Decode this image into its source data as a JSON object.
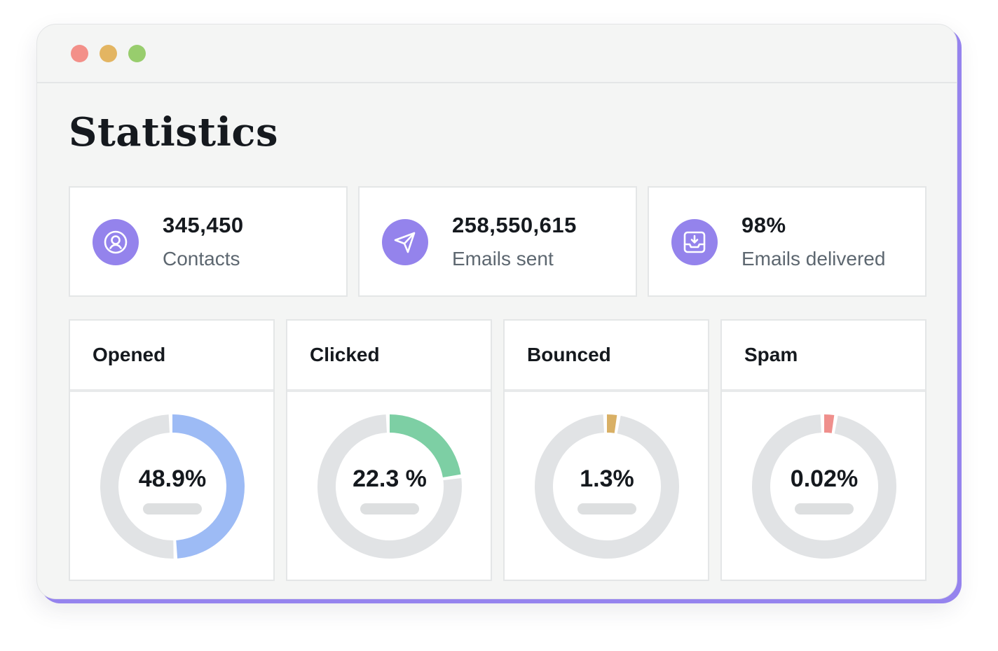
{
  "page": {
    "title": "Statistics"
  },
  "window": {
    "controls": [
      "close",
      "minimize",
      "maximize"
    ],
    "colors": {
      "close": "#f39089",
      "minimize": "#e3b562",
      "maximize": "#98cd6d",
      "accent": "#9483ec"
    }
  },
  "stats": [
    {
      "icon": "user-circle-icon",
      "value": "345,450",
      "label": "Contacts"
    },
    {
      "icon": "paper-plane-icon",
      "value": "258,550,615",
      "label": "Emails sent"
    },
    {
      "icon": "inbox-download-icon",
      "value": "98%",
      "label": "Emails delivered"
    }
  ],
  "metrics": [
    {
      "title": "Opened",
      "value": "48.9%",
      "fraction": 0.489,
      "color": "#9dbbf5"
    },
    {
      "title": "Clicked",
      "value": "22.3 %",
      "fraction": 0.223,
      "color": "#7dcfa4"
    },
    {
      "title": "Bounced",
      "value": "1.3%",
      "fraction": 0.013,
      "color": "#d9b065"
    },
    {
      "title": "Spam",
      "value": "0.02%",
      "fraction": 0.0002,
      "color": "#ef8f8c"
    }
  ]
}
